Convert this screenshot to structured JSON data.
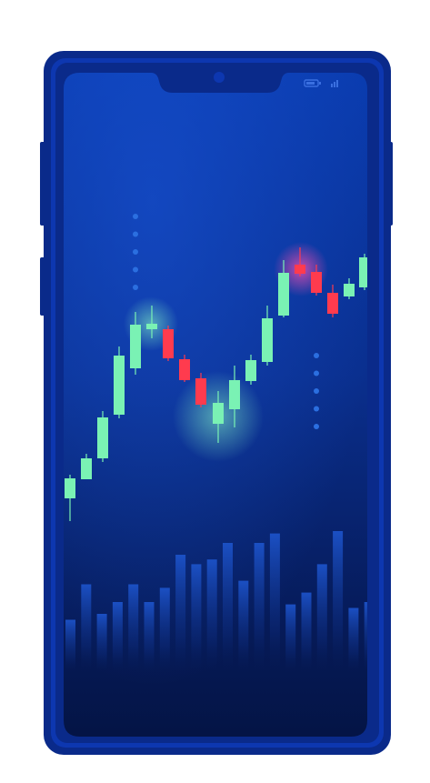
{
  "illustration": {
    "subject": "smartphone-with-candlestick-chart",
    "colors": {
      "frame_outer": "#0a2a8a",
      "frame_inner": "#0f3bb8",
      "screen_top": "#0b3aa8",
      "screen_bottom": "#04123a",
      "bull_candle": "#7af2b4",
      "bear_candle": "#ff3b4e",
      "volume_bar": "#1a4fc0",
      "dots": "#2b6fe0",
      "status_icons": "#3a6fe0"
    }
  },
  "status_bar": {
    "battery_icon": "battery-icon",
    "signal_icon": "signal-icon"
  },
  "chart_data": {
    "type": "candlestick",
    "candles": [
      {
        "dir": "up"
      },
      {
        "dir": "up"
      },
      {
        "dir": "up"
      },
      {
        "dir": "up"
      },
      {
        "dir": "up"
      },
      {
        "dir": "up"
      },
      {
        "dir": "down"
      },
      {
        "dir": "down"
      },
      {
        "dir": "down"
      },
      {
        "dir": "up"
      },
      {
        "dir": "up"
      },
      {
        "dir": "up"
      },
      {
        "dir": "up"
      },
      {
        "dir": "up"
      },
      {
        "dir": "down"
      },
      {
        "dir": "down"
      },
      {
        "dir": "down"
      },
      {
        "dir": "up"
      },
      {
        "dir": "up"
      }
    ],
    "volume_levels": [
      0.45,
      0.75,
      0.5,
      0.6,
      0.75,
      0.6,
      0.72,
      1.0,
      0.92,
      0.96,
      1.1,
      0.78,
      1.1,
      1.18,
      0.58,
      0.68,
      0.92,
      1.2,
      0.55,
      0.6
    ]
  }
}
